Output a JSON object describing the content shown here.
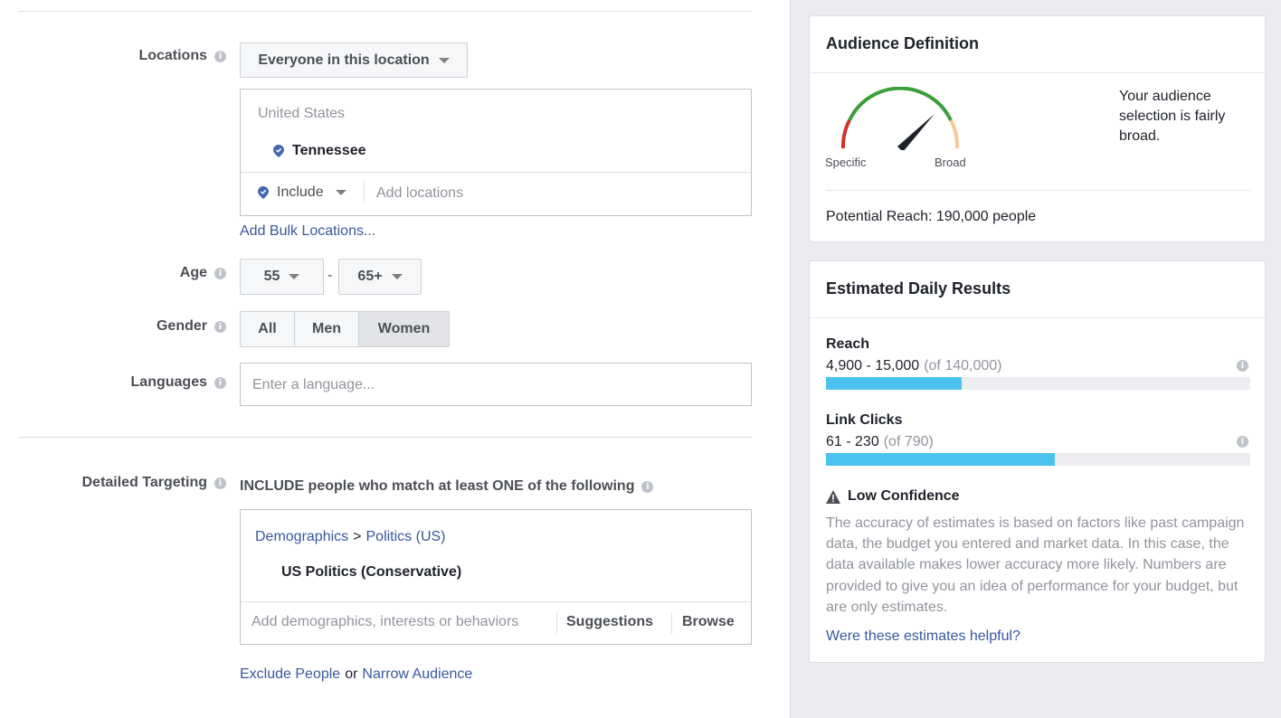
{
  "locations": {
    "label": "Locations",
    "dropdown_label": "Everyone in this location",
    "country": "United States",
    "selected": "Tennessee",
    "include_label": "Include",
    "add_placeholder": "Add locations",
    "bulk_link": "Add Bulk Locations..."
  },
  "age": {
    "label": "Age",
    "min": "55",
    "separator": "-",
    "max": "65+"
  },
  "gender": {
    "label": "Gender",
    "options": [
      "All",
      "Men",
      "Women"
    ],
    "selected": "Women"
  },
  "languages": {
    "label": "Languages",
    "placeholder": "Enter a language..."
  },
  "detailed_targeting": {
    "label": "Detailed Targeting",
    "heading": "INCLUDE people who match at least ONE of the following",
    "crumb_parent": "Demographics",
    "crumb_sep": ">",
    "crumb_child": "Politics (US)",
    "selected_item": "US Politics (Conservative)",
    "add_placeholder": "Add demographics, interests or behaviors",
    "suggestions": "Suggestions",
    "browse": "Browse",
    "exclude_link": "Exclude People",
    "or_text": "or",
    "narrow_link": "Narrow Audience"
  },
  "audience_definition": {
    "title": "Audience Definition",
    "gauge_left": "Specific",
    "gauge_right": "Broad",
    "description": "Your audience selection is fairly broad.",
    "potential_reach": "Potential Reach: 190,000 people"
  },
  "estimated_results": {
    "title": "Estimated Daily Results",
    "reach": {
      "label": "Reach",
      "range": "4,900 - 15,000",
      "total": "(of 140,000)",
      "fill_fraction": 0.32
    },
    "link_clicks": {
      "label": "Link Clicks",
      "range": "61 - 230",
      "total": "(of 790)",
      "fill_fraction": 0.54
    },
    "confidence_title": "Low Confidence",
    "confidence_text": "The accuracy of estimates is based on factors like past campaign data, the budget you entered and market data. In this case, the data available makes lower accuracy more likely. Numbers are provided to give you an idea of performance for your budget, but are only estimates.",
    "feedback_link": "Were these estimates helpful?"
  },
  "colors": {
    "link": "#365899",
    "bar": "#4cc3ef",
    "pin": "#4267b2"
  },
  "icons": [
    "info-icon",
    "location-pin-icon",
    "caret-down-icon",
    "warning-icon",
    "gauge-needle-icon"
  ]
}
